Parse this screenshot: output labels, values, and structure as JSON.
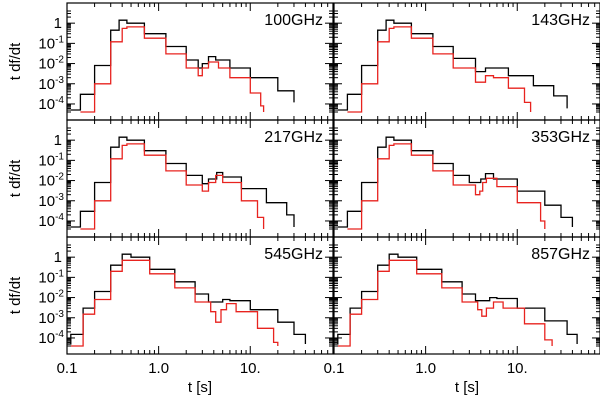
{
  "chart_data": {
    "type": "line",
    "x_scale": "log",
    "y_scale": "log",
    "xlim": [
      0.1,
      80
    ],
    "ylim": [
      4e-05,
      4
    ],
    "xlabel": "t [s]",
    "ylabel": "t df/dt",
    "x_ticks": [
      {
        "value": 0.1,
        "label": "0.1"
      },
      {
        "value": 1.0,
        "label": "1.0"
      },
      {
        "value": 10,
        "label": "10."
      }
    ],
    "y_ticks": [
      {
        "value": 1,
        "label": "1"
      },
      {
        "value": 0.1,
        "label": "10",
        "exp": "-1"
      },
      {
        "value": 0.01,
        "label": "10",
        "exp": "-2"
      },
      {
        "value": 0.001,
        "label": "10",
        "exp": "-3"
      },
      {
        "value": 0.0001,
        "label": "10",
        "exp": "-4"
      }
    ],
    "series_colors": {
      "upper": "#000000",
      "lower": "#e8231f"
    },
    "panels": [
      {
        "label": "100GHz",
        "series": [
          {
            "name": "upper",
            "color": "#000000",
            "points": [
              [
                0.11,
                5e-05
              ],
              [
                0.14,
                0.0003
              ],
              [
                0.2,
                0.008
              ],
              [
                0.3,
                0.45
              ],
              [
                0.37,
                1.4
              ],
              [
                0.45,
                1.0
              ],
              [
                0.7,
                0.3
              ],
              [
                1.2,
                0.07
              ],
              [
                2.0,
                0.015
              ],
              [
                2.7,
                0.006
              ],
              [
                3.0,
                0.01
              ],
              [
                3.5,
                0.022
              ],
              [
                4.2,
                0.015
              ],
              [
                6,
                0.006
              ],
              [
                10,
                0.002
              ],
              [
                20,
                0.00045
              ],
              [
                30,
                0.00012
              ]
            ]
          },
          {
            "name": "lower",
            "color": "#e8231f",
            "points": [
              [
                0.14,
                4e-05
              ],
              [
                0.2,
                0.001
              ],
              [
                0.3,
                0.12
              ],
              [
                0.4,
                0.55
              ],
              [
                0.45,
                0.65
              ],
              [
                0.7,
                0.18
              ],
              [
                1.2,
                0.03
              ],
              [
                2.0,
                0.006
              ],
              [
                2.7,
                0.0025
              ],
              [
                3.0,
                0.006
              ],
              [
                3.5,
                0.012
              ],
              [
                4.5,
                0.006
              ],
              [
                6,
                0.002
              ],
              [
                10,
                0.00035
              ],
              [
                13,
                8e-05
              ],
              [
                14,
                4e-05
              ]
            ]
          }
        ]
      },
      {
        "label": "143GHz",
        "series": [
          {
            "name": "upper",
            "color": "#000000",
            "points": [
              [
                0.11,
                5e-05
              ],
              [
                0.14,
                0.0003
              ],
              [
                0.2,
                0.008
              ],
              [
                0.3,
                0.45
              ],
              [
                0.37,
                1.4
              ],
              [
                0.45,
                1.0
              ],
              [
                0.7,
                0.3
              ],
              [
                1.2,
                0.07
              ],
              [
                2.0,
                0.018
              ],
              [
                3.5,
                0.004
              ],
              [
                4.5,
                0.006
              ],
              [
                5.5,
                0.006
              ],
              [
                8,
                0.0025
              ],
              [
                15,
                0.0008
              ],
              [
                25,
                0.00025
              ],
              [
                35,
                6e-05
              ]
            ]
          },
          {
            "name": "lower",
            "color": "#e8231f",
            "points": [
              [
                0.14,
                4e-05
              ],
              [
                0.2,
                0.001
              ],
              [
                0.3,
                0.12
              ],
              [
                0.4,
                0.55
              ],
              [
                0.45,
                0.65
              ],
              [
                0.7,
                0.18
              ],
              [
                1.2,
                0.03
              ],
              [
                2.0,
                0.006
              ],
              [
                3.5,
                0.0012
              ],
              [
                4.5,
                0.0025
              ],
              [
                5.5,
                0.002
              ],
              [
                8,
                0.0006
              ],
              [
                12,
                0.00012
              ],
              [
                14,
                4e-05
              ]
            ]
          }
        ]
      },
      {
        "label": "217GHz",
        "series": [
          {
            "name": "upper",
            "color": "#000000",
            "points": [
              [
                0.11,
                5e-05
              ],
              [
                0.14,
                0.0003
              ],
              [
                0.2,
                0.008
              ],
              [
                0.3,
                0.45
              ],
              [
                0.37,
                1.4
              ],
              [
                0.45,
                1.0
              ],
              [
                0.7,
                0.3
              ],
              [
                1.2,
                0.07
              ],
              [
                2.0,
                0.018
              ],
              [
                3.0,
                0.007
              ],
              [
                3.5,
                0.012
              ],
              [
                4.3,
                0.025
              ],
              [
                5,
                0.015
              ],
              [
                8,
                0.004
              ],
              [
                15,
                0.0008
              ],
              [
                25,
                0.0002
              ],
              [
                30,
                5e-05
              ]
            ]
          },
          {
            "name": "lower",
            "color": "#e8231f",
            "points": [
              [
                0.14,
                4e-05
              ],
              [
                0.2,
                0.001
              ],
              [
                0.3,
                0.12
              ],
              [
                0.4,
                0.55
              ],
              [
                0.45,
                0.65
              ],
              [
                0.7,
                0.18
              ],
              [
                1.2,
                0.03
              ],
              [
                2.0,
                0.006
              ],
              [
                3.0,
                0.003
              ],
              [
                3.5,
                0.008
              ],
              [
                4.2,
                0.018
              ],
              [
                5,
                0.008
              ],
              [
                8,
                0.001
              ],
              [
                12,
                0.00015
              ],
              [
                14,
                4e-05
              ]
            ]
          }
        ]
      },
      {
        "label": "353GHz",
        "series": [
          {
            "name": "upper",
            "color": "#000000",
            "points": [
              [
                0.11,
                5e-05
              ],
              [
                0.14,
                0.0003
              ],
              [
                0.2,
                0.008
              ],
              [
                0.3,
                0.45
              ],
              [
                0.37,
                1.4
              ],
              [
                0.45,
                1.0
              ],
              [
                0.7,
                0.3
              ],
              [
                1.2,
                0.07
              ],
              [
                2.0,
                0.018
              ],
              [
                3.0,
                0.008
              ],
              [
                4.0,
                0.012
              ],
              [
                4.5,
                0.022
              ],
              [
                5.5,
                0.012
              ],
              [
                10,
                0.003
              ],
              [
                20,
                0.0006
              ],
              [
                30,
                0.00015
              ],
              [
                40,
                5e-05
              ]
            ]
          },
          {
            "name": "lower",
            "color": "#e8231f",
            "points": [
              [
                0.14,
                4e-05
              ],
              [
                0.2,
                0.001
              ],
              [
                0.3,
                0.12
              ],
              [
                0.4,
                0.55
              ],
              [
                0.45,
                0.65
              ],
              [
                0.7,
                0.18
              ],
              [
                1.2,
                0.03
              ],
              [
                2.0,
                0.006
              ],
              [
                3.5,
                0.002
              ],
              [
                3.9,
                0.003
              ],
              [
                4.2,
                0.008
              ],
              [
                4.6,
                0.013
              ],
              [
                6,
                0.005
              ],
              [
                10,
                0.0008
              ],
              [
                18,
                0.0001
              ],
              [
                20,
                4e-05
              ]
            ]
          }
        ]
      },
      {
        "label": "545GHz",
        "series": [
          {
            "name": "upper",
            "color": "#000000",
            "points": [
              [
                0.1,
                5e-05
              ],
              [
                0.11,
                0.00015
              ],
              [
                0.15,
                0.003
              ],
              [
                0.2,
                0.02
              ],
              [
                0.3,
                0.4
              ],
              [
                0.4,
                1.4
              ],
              [
                0.5,
                1.0
              ],
              [
                0.8,
                0.25
              ],
              [
                1.5,
                0.06
              ],
              [
                2.5,
                0.015
              ],
              [
                3.5,
                0.006
              ],
              [
                5,
                0.008
              ],
              [
                6,
                0.007
              ],
              [
                10,
                0.0025
              ],
              [
                20,
                0.0006
              ],
              [
                30,
                0.00015
              ],
              [
                40,
                5e-05
              ]
            ]
          },
          {
            "name": "lower",
            "color": "#e8231f",
            "points": [
              [
                0.11,
                4e-05
              ],
              [
                0.15,
                0.0015
              ],
              [
                0.2,
                0.008
              ],
              [
                0.3,
                0.2
              ],
              [
                0.4,
                0.7
              ],
              [
                0.5,
                0.7
              ],
              [
                0.8,
                0.15
              ],
              [
                1.5,
                0.03
              ],
              [
                2.5,
                0.006
              ],
              [
                3.7,
                0.002
              ],
              [
                4.2,
                0.0006
              ],
              [
                4.8,
                0.0025
              ],
              [
                5.5,
                0.005
              ],
              [
                7,
                0.002
              ],
              [
                12,
                0.0003
              ],
              [
                18,
                6e-05
              ],
              [
                20,
                4e-05
              ]
            ]
          }
        ]
      },
      {
        "label": "857GHz",
        "series": [
          {
            "name": "upper",
            "color": "#000000",
            "points": [
              [
                0.1,
                5e-05
              ],
              [
                0.11,
                0.00015
              ],
              [
                0.15,
                0.003
              ],
              [
                0.2,
                0.02
              ],
              [
                0.3,
                0.4
              ],
              [
                0.4,
                1.4
              ],
              [
                0.5,
                1.0
              ],
              [
                0.8,
                0.25
              ],
              [
                1.5,
                0.06
              ],
              [
                2.5,
                0.015
              ],
              [
                3.5,
                0.007
              ],
              [
                5,
                0.01
              ],
              [
                6,
                0.009
              ],
              [
                10,
                0.003
              ],
              [
                20,
                0.0007
              ],
              [
                35,
                0.00015
              ],
              [
                45,
                5e-05
              ]
            ]
          },
          {
            "name": "lower",
            "color": "#e8231f",
            "points": [
              [
                0.11,
                4e-05
              ],
              [
                0.15,
                0.0015
              ],
              [
                0.2,
                0.008
              ],
              [
                0.3,
                0.2
              ],
              [
                0.4,
                0.7
              ],
              [
                0.5,
                0.7
              ],
              [
                0.8,
                0.15
              ],
              [
                1.5,
                0.03
              ],
              [
                2.5,
                0.006
              ],
              [
                3.7,
                0.0025
              ],
              [
                4.1,
                0.0012
              ],
              [
                4.6,
                0.003
              ],
              [
                5.5,
                0.006
              ],
              [
                7,
                0.003
              ],
              [
                12,
                0.0005
              ],
              [
                20,
                8e-05
              ],
              [
                24,
                4e-05
              ]
            ]
          }
        ]
      }
    ]
  }
}
